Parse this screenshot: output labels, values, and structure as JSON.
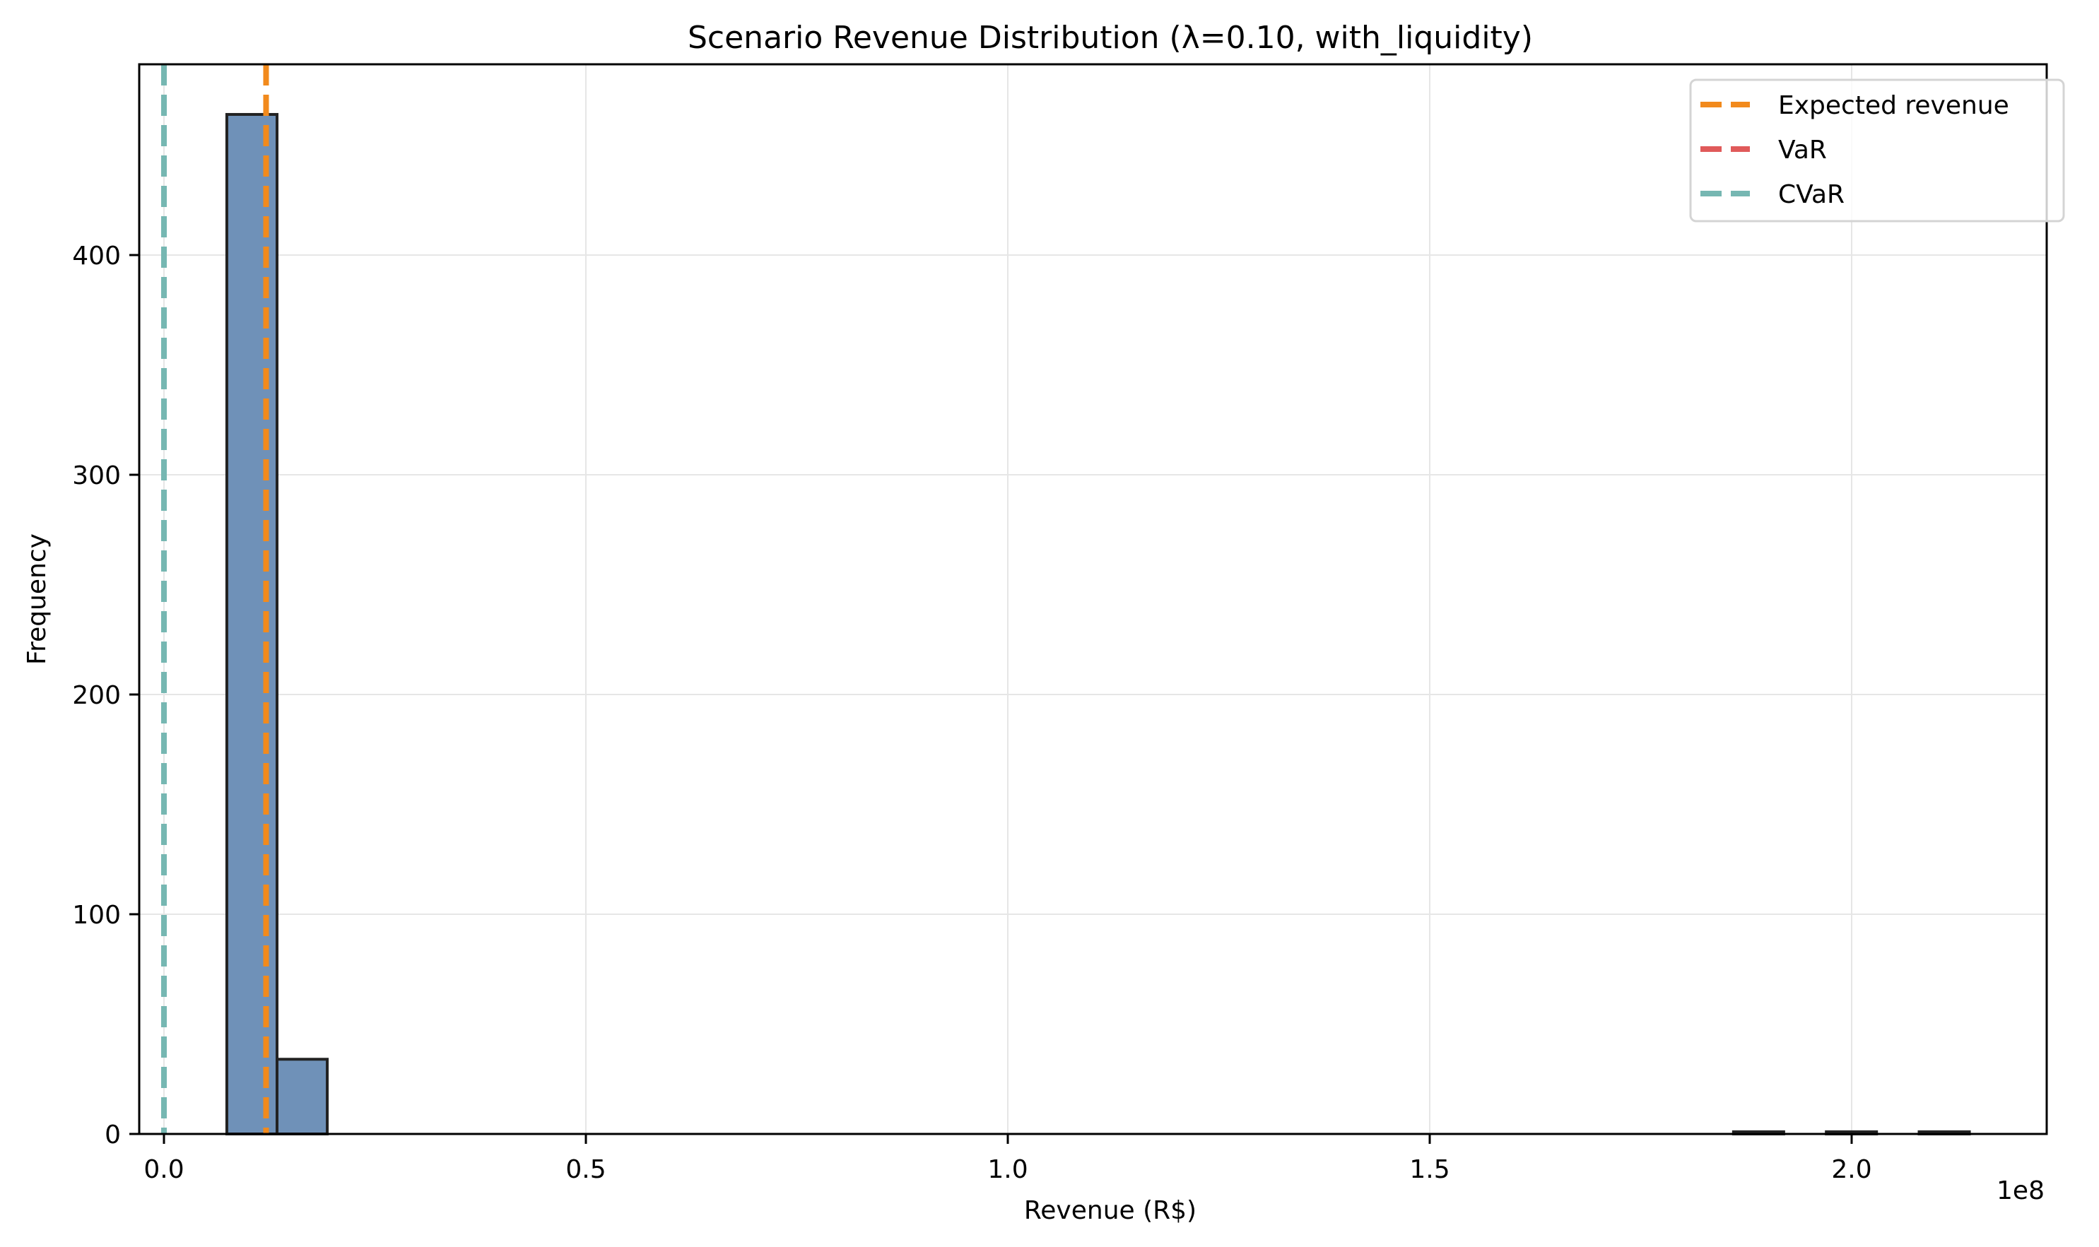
{
  "chart_data": {
    "type": "bar",
    "subtype": "histogram",
    "title": "Scenario Revenue Distribution (λ=0.10, with_liquidity)",
    "xlabel": "Revenue (R$)",
    "ylabel": "Frequency",
    "x_offset_label": "1e8",
    "xlim": [
      -0.03,
      2.27
    ],
    "ylim": [
      0,
      487
    ],
    "x_ticks": [
      0.0,
      0.5,
      1.0,
      1.5,
      2.0
    ],
    "x_tick_labels": [
      "0.0",
      "0.5",
      "1.0",
      "1.5",
      "2.0"
    ],
    "y_ticks": [
      0,
      100,
      200,
      300,
      400
    ],
    "y_tick_labels": [
      "0",
      "100",
      "200",
      "300",
      "400"
    ],
    "grid": true,
    "legend_position": "upper right",
    "bin_width": 0.0595,
    "bins": [
      {
        "x0": 0.0745,
        "x1": 0.134,
        "count": 464
      },
      {
        "x0": 0.134,
        "x1": 0.1935,
        "count": 34
      },
      {
        "x0": 1.86,
        "x1": 1.9195,
        "count": 1
      },
      {
        "x0": 1.97,
        "x1": 2.0295,
        "count": 1
      },
      {
        "x0": 2.08,
        "x1": 2.1395,
        "count": 1
      }
    ],
    "vertical_lines": [
      {
        "name": "Expected revenue",
        "x": 0.121,
        "color": "#f28a1c",
        "style": "dashed"
      },
      {
        "name": "VaR",
        "x": 0.0,
        "color": "#e05a5a",
        "style": "dashed"
      },
      {
        "name": "CVaR",
        "x": 0.0,
        "color": "#76b7b2",
        "style": "dashed"
      }
    ],
    "bar_color": "#6f91b8",
    "bar_edge_color": "#222222"
  },
  "legend": {
    "items": [
      {
        "label": "Expected revenue",
        "color": "#f28a1c"
      },
      {
        "label": "VaR",
        "color": "#e05a5a"
      },
      {
        "label": "CVaR",
        "color": "#76b7b2"
      }
    ]
  }
}
